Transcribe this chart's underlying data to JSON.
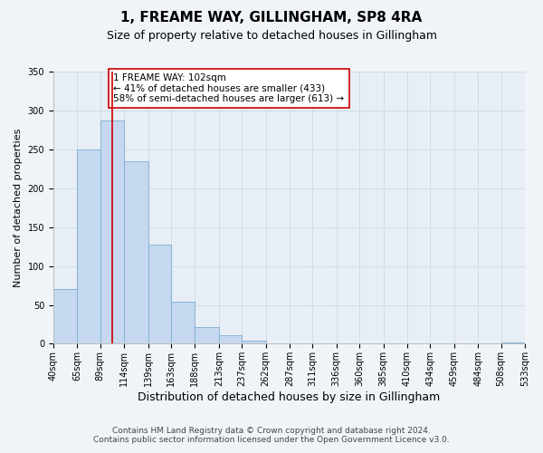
{
  "title": "1, FREAME WAY, GILLINGHAM, SP8 4RA",
  "subtitle": "Size of property relative to detached houses in Gillingham",
  "xlabel": "Distribution of detached houses by size in Gillingham",
  "ylabel": "Number of detached properties",
  "bin_edges": [
    40,
    65,
    89,
    114,
    139,
    163,
    188,
    213,
    237,
    262,
    287,
    311,
    336,
    360,
    385,
    410,
    434,
    459,
    484,
    508,
    533
  ],
  "bar_heights": [
    70,
    250,
    287,
    235,
    128,
    54,
    22,
    11,
    4,
    0,
    0,
    0,
    0,
    0,
    0,
    0,
    0,
    0,
    0,
    2
  ],
  "bar_color": "#c5d8ef",
  "bar_edge_color": "#7aadd4",
  "grid_color": "#d0dce8",
  "background_color": "#f0f4f8",
  "plot_bg_color": "#e8eef5",
  "vline_x": 102,
  "vline_color": "#cc0000",
  "annotation_text": "1 FREAME WAY: 102sqm\n← 41% of detached houses are smaller (433)\n58% of semi-detached houses are larger (613) →",
  "annotation_box_color": "#ffffff",
  "annotation_border_color": "#cc0000",
  "ylim": [
    0,
    350
  ],
  "yticks": [
    0,
    50,
    100,
    150,
    200,
    250,
    300,
    350
  ],
  "tick_labels": [
    "40sqm",
    "65sqm",
    "89sqm",
    "114sqm",
    "139sqm",
    "163sqm",
    "188sqm",
    "213sqm",
    "237sqm",
    "262sqm",
    "287sqm",
    "311sqm",
    "336sqm",
    "360sqm",
    "385sqm",
    "410sqm",
    "434sqm",
    "459sqm",
    "484sqm",
    "508sqm",
    "533sqm"
  ],
  "footer_text": "Contains HM Land Registry data © Crown copyright and database right 2024.\nContains public sector information licensed under the Open Government Licence v3.0.",
  "title_fontsize": 11,
  "subtitle_fontsize": 9,
  "xlabel_fontsize": 9,
  "ylabel_fontsize": 8,
  "tick_fontsize": 7,
  "annotation_fontsize": 7.5,
  "footer_fontsize": 6.5
}
